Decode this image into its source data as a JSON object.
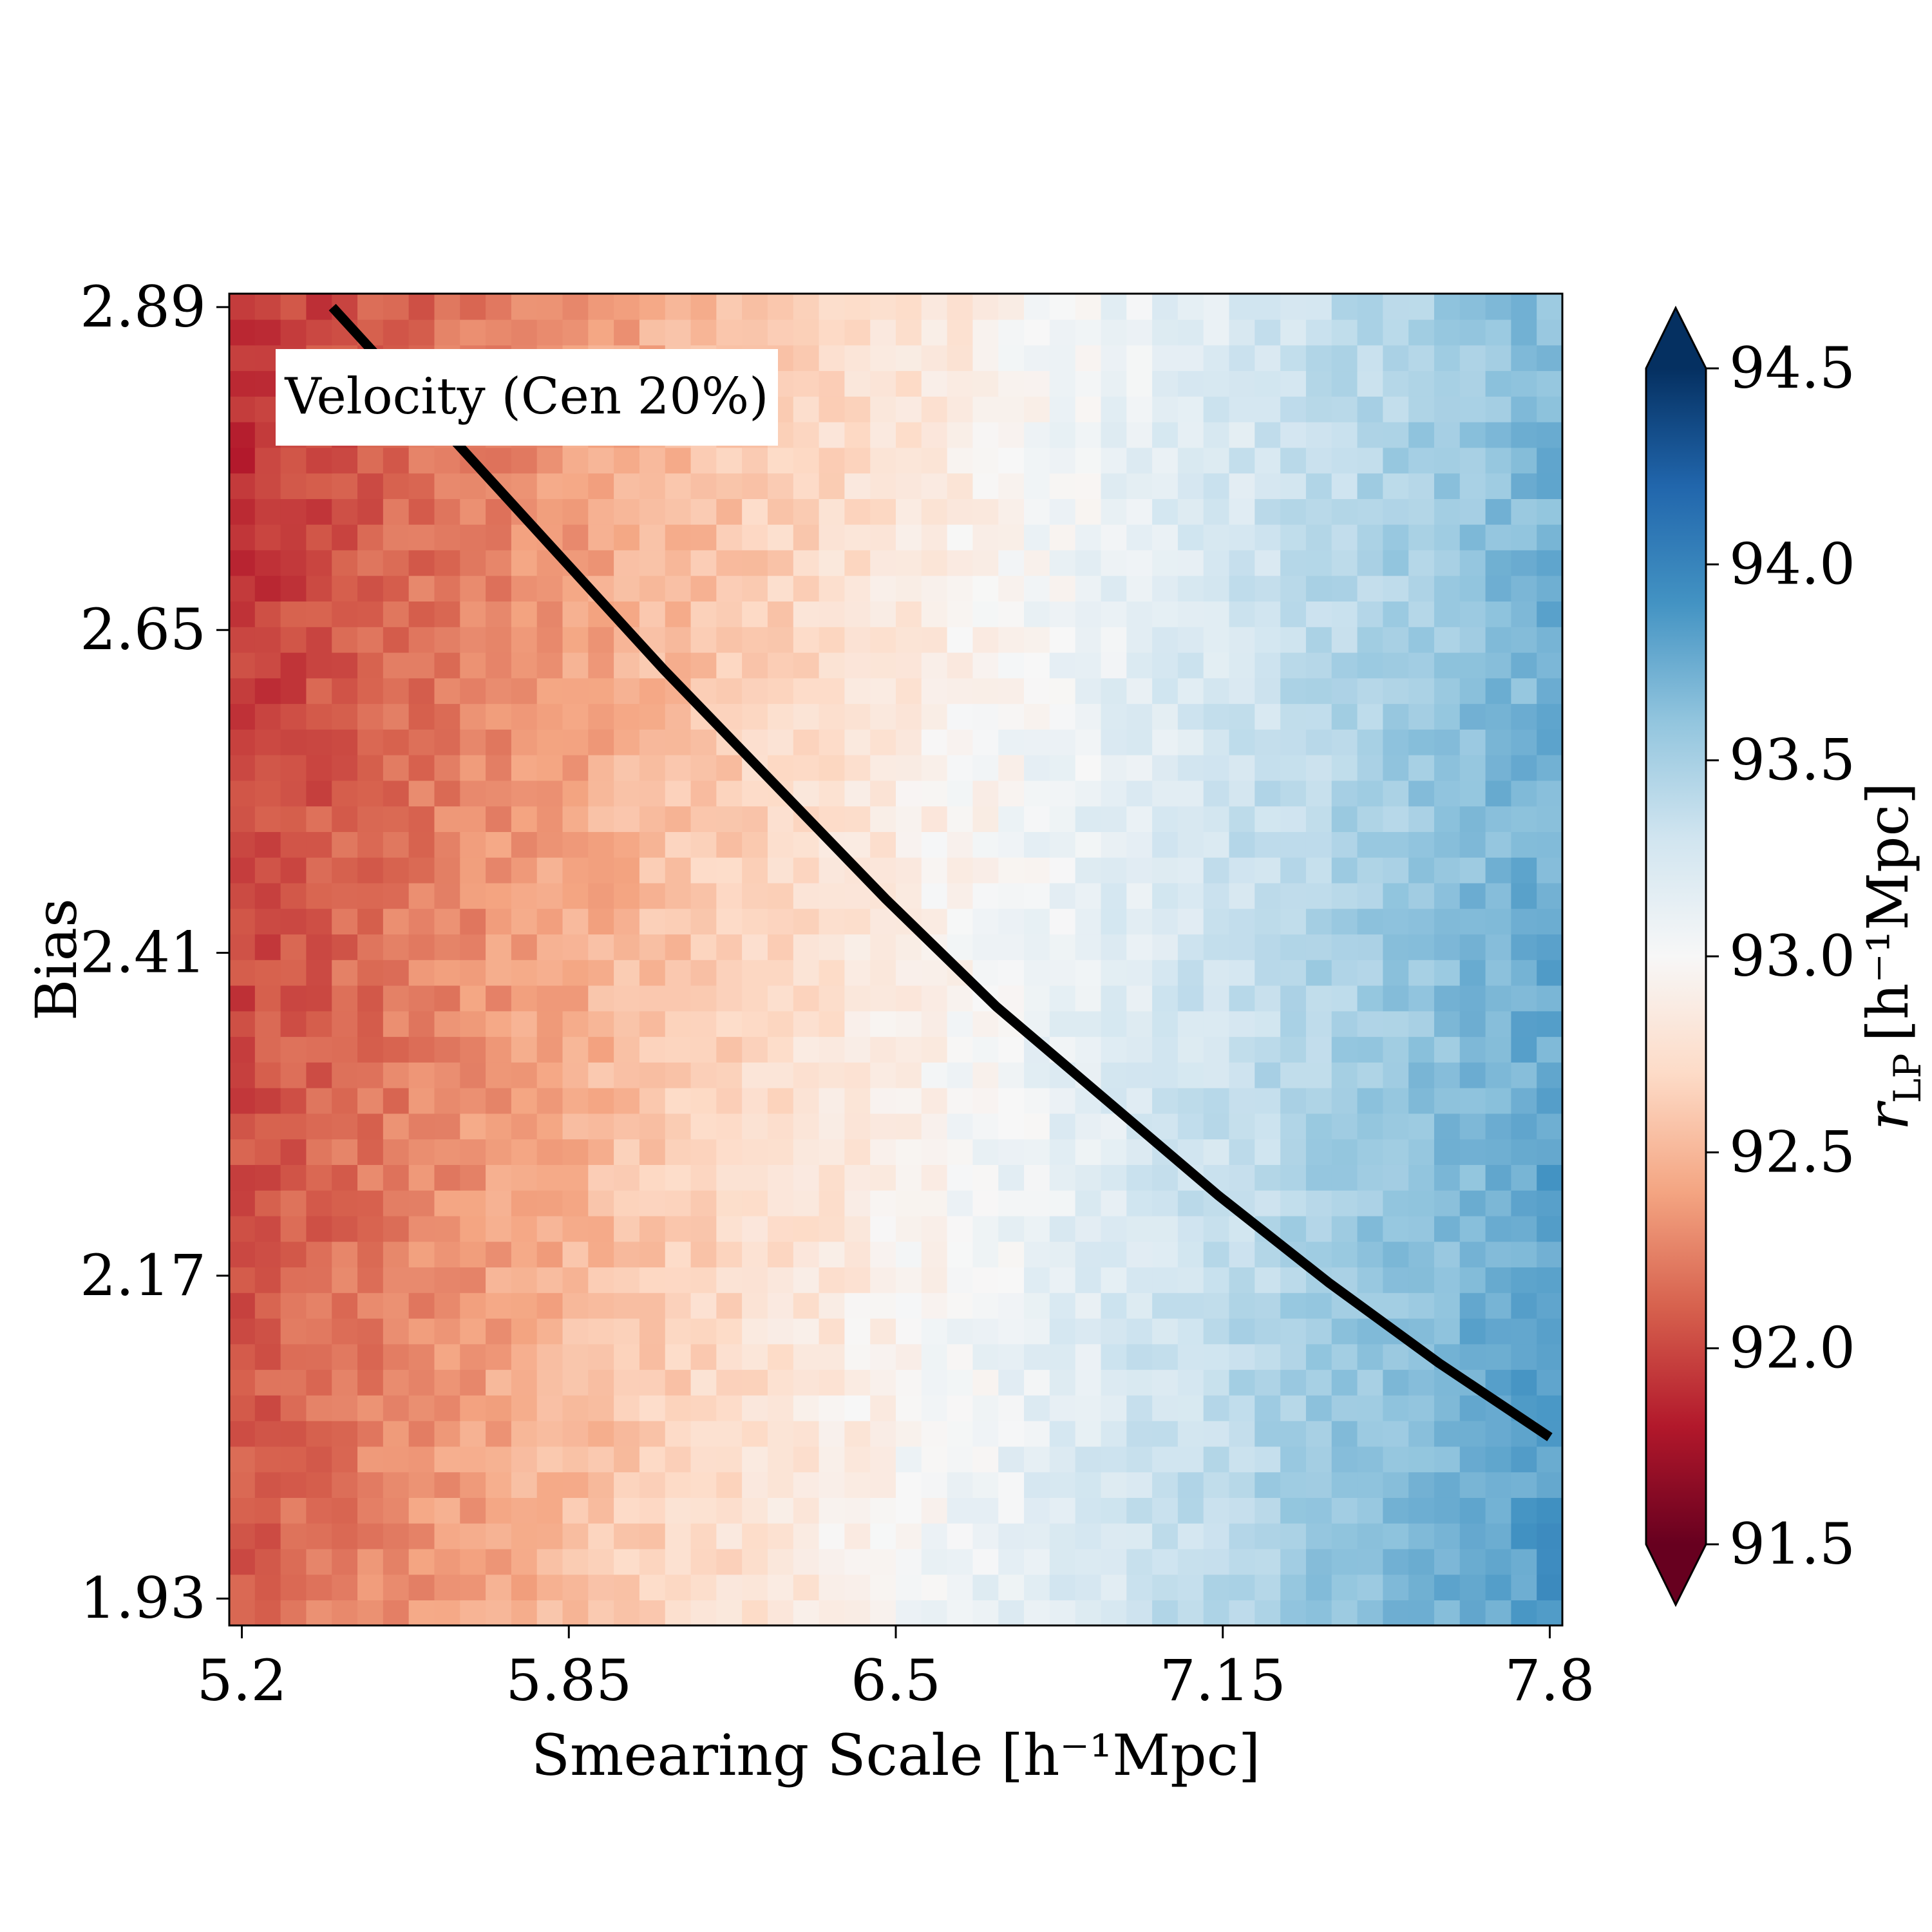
{
  "chart_data": {
    "type": "heatmap",
    "title": "",
    "xlabel": "Smearing Scale [h⁻¹Mpc]",
    "ylabel": "Bias",
    "xlim": [
      5.175,
      7.825
    ],
    "ylim": [
      1.91,
      2.9
    ],
    "x_ticks": [
      {
        "value": 5.2,
        "label": "5.2"
      },
      {
        "value": 5.85,
        "label": "5.85"
      },
      {
        "value": 6.5,
        "label": "6.5"
      },
      {
        "value": 7.15,
        "label": "7.15"
      },
      {
        "value": 7.8,
        "label": "7.8"
      }
    ],
    "y_ticks": [
      {
        "value": 1.93,
        "label": "1.93"
      },
      {
        "value": 2.17,
        "label": "2.17"
      },
      {
        "value": 2.41,
        "label": "2.41"
      },
      {
        "value": 2.65,
        "label": "2.65"
      },
      {
        "value": 2.89,
        "label": "2.89"
      }
    ],
    "grid": false,
    "annotation": "Velocity (Cen 20%)",
    "colorbar": {
      "label": "r_LP [h⁻¹Mpc]",
      "label_main": "r",
      "label_sub": "LP",
      "label_unit": "[h⁻¹Mpc]",
      "min": 91.5,
      "max": 94.5,
      "extend": "both",
      "colormap": "RdBu",
      "ticks": [
        {
          "value": 91.5,
          "label": "91.5"
        },
        {
          "value": 92.0,
          "label": "92.0"
        },
        {
          "value": 92.5,
          "label": "92.5"
        },
        {
          "value": 93.0,
          "label": "93.0"
        },
        {
          "value": 93.5,
          "label": "93.5"
        },
        {
          "value": 94.0,
          "label": "94.0"
        },
        {
          "value": 94.5,
          "label": "94.5"
        }
      ]
    },
    "grid_shape": {
      "nx": 52,
      "ny": 52
    },
    "x_range": [
      5.2,
      7.8
    ],
    "y_range": [
      1.93,
      2.89
    ],
    "field_description": "value increases with smearing scale (approx. 92.1 at 5.2 to 93.9 at 7.8) and slightly decreases with bias; pixel noise present",
    "curve": {
      "name": "",
      "color": "#000000",
      "x": [
        5.38,
        5.6,
        5.82,
        6.04,
        6.26,
        6.48,
        6.7,
        6.92,
        7.14,
        7.36,
        7.58,
        7.8
      ],
      "y": [
        2.89,
        2.8,
        2.71,
        2.62,
        2.535,
        2.45,
        2.37,
        2.3,
        2.23,
        2.165,
        2.105,
        2.05
      ]
    }
  }
}
